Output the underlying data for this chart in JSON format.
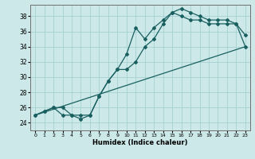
{
  "title": "",
  "xlabel": "Humidex (Indice chaleur)",
  "ylabel": "",
  "xlim": [
    -0.5,
    23.5
  ],
  "ylim": [
    23.0,
    39.5
  ],
  "xticks": [
    0,
    1,
    2,
    3,
    4,
    5,
    6,
    7,
    8,
    9,
    10,
    11,
    12,
    13,
    14,
    15,
    16,
    17,
    18,
    19,
    20,
    21,
    22,
    23
  ],
  "yticks": [
    24,
    26,
    28,
    30,
    32,
    34,
    36,
    38
  ],
  "bg_color": "#cce8e8",
  "grid_color": "#9ecece",
  "line_color": "#1a6060",
  "line1_x": [
    0,
    1,
    2,
    3,
    4,
    5,
    6,
    7,
    8,
    9,
    10,
    11,
    12,
    13,
    14,
    15,
    16,
    17,
    18,
    19,
    20,
    21,
    22,
    23
  ],
  "line1_y": [
    25.0,
    25.5,
    26.0,
    26.0,
    25.0,
    24.5,
    25.0,
    27.5,
    29.5,
    31.0,
    33.0,
    36.5,
    35.0,
    36.5,
    37.5,
    38.5,
    39.0,
    38.5,
    38.0,
    37.5,
    37.5,
    37.5,
    37.0,
    35.5
  ],
  "line2_x": [
    0,
    1,
    2,
    3,
    4,
    5,
    6,
    7,
    8,
    9,
    10,
    11,
    12,
    13,
    14,
    15,
    16,
    17,
    18,
    19,
    20,
    21,
    22,
    23
  ],
  "line2_y": [
    25.0,
    25.5,
    26.0,
    25.0,
    25.0,
    25.0,
    25.0,
    27.5,
    29.5,
    31.0,
    31.0,
    32.0,
    34.0,
    35.0,
    37.0,
    38.5,
    38.0,
    37.5,
    37.5,
    37.0,
    37.0,
    37.0,
    37.0,
    34.0
  ],
  "line3_x": [
    0,
    23
  ],
  "line3_y": [
    25.0,
    34.0
  ],
  "marker": "D",
  "markersize": 2.0,
  "linewidth": 0.9
}
